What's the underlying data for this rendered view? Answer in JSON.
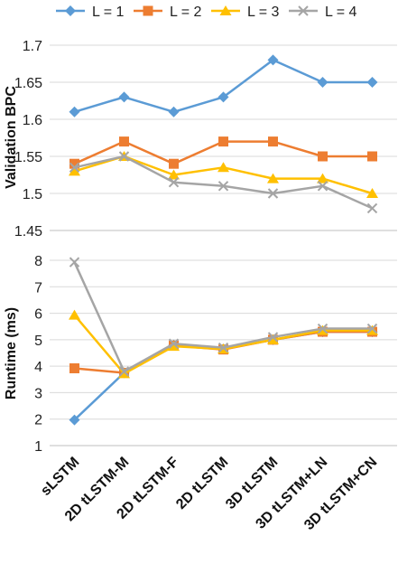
{
  "chart_data": {
    "type": "line",
    "categories": [
      "sLSTM",
      "2D tLSTM-M",
      "2D tLSTM-F",
      "2D tLSTM",
      "3D tLSTM",
      "3D tLSTM+LN",
      "3D tLSTM+CN"
    ],
    "legend": {
      "placement": "top",
      "entries": [
        {
          "name": "L = 1",
          "color": "#5b9bd5",
          "marker": "diamond"
        },
        {
          "name": "L = 2",
          "color": "#ed7d31",
          "marker": "square"
        },
        {
          "name": "L = 3",
          "color": "#ffc000",
          "marker": "triangle"
        },
        {
          "name": "L = 4",
          "color": "#a5a5a5",
          "marker": "x"
        }
      ]
    },
    "panels": [
      {
        "ylabel": "Validation BPC",
        "ylim": [
          1.45,
          1.7
        ],
        "yticks": [
          "1.45",
          "1.5",
          "1.55",
          "1.6",
          "1.65",
          "1.7"
        ],
        "grid": true,
        "series": [
          {
            "name": "L = 1",
            "values": [
              1.61,
              1.63,
              1.61,
              1.63,
              1.68,
              1.65,
              1.65
            ]
          },
          {
            "name": "L = 2",
            "values": [
              1.54,
              1.57,
              1.54,
              1.57,
              1.57,
              1.55,
              1.55
            ]
          },
          {
            "name": "L = 3",
            "values": [
              1.53,
              1.55,
              1.525,
              1.535,
              1.52,
              1.52,
              1.5
            ]
          },
          {
            "name": "L = 4",
            "values": [
              1.535,
              1.55,
              1.515,
              1.51,
              1.5,
              1.51,
              1.48
            ]
          }
        ]
      },
      {
        "ylabel": "Runtime (ms)",
        "ylim": [
          1,
          8
        ],
        "yticks": [
          "1",
          "2",
          "3",
          "4",
          "5",
          "6",
          "7",
          "8"
        ],
        "grid": true,
        "series": [
          {
            "name": "L = 1",
            "values": [
              1.97,
              3.75,
              4.8,
              4.65,
              5.0,
              5.3,
              5.3
            ]
          },
          {
            "name": "L = 2",
            "values": [
              3.92,
              3.75,
              4.78,
              4.63,
              5.0,
              5.3,
              5.3
            ]
          },
          {
            "name": "L = 3",
            "values": [
              5.93,
              3.72,
              4.75,
              4.65,
              5.0,
              5.35,
              5.35
            ]
          },
          {
            "name": "L = 4",
            "values": [
              7.93,
              3.8,
              4.85,
              4.7,
              5.1,
              5.42,
              5.42
            ]
          }
        ]
      }
    ]
  }
}
